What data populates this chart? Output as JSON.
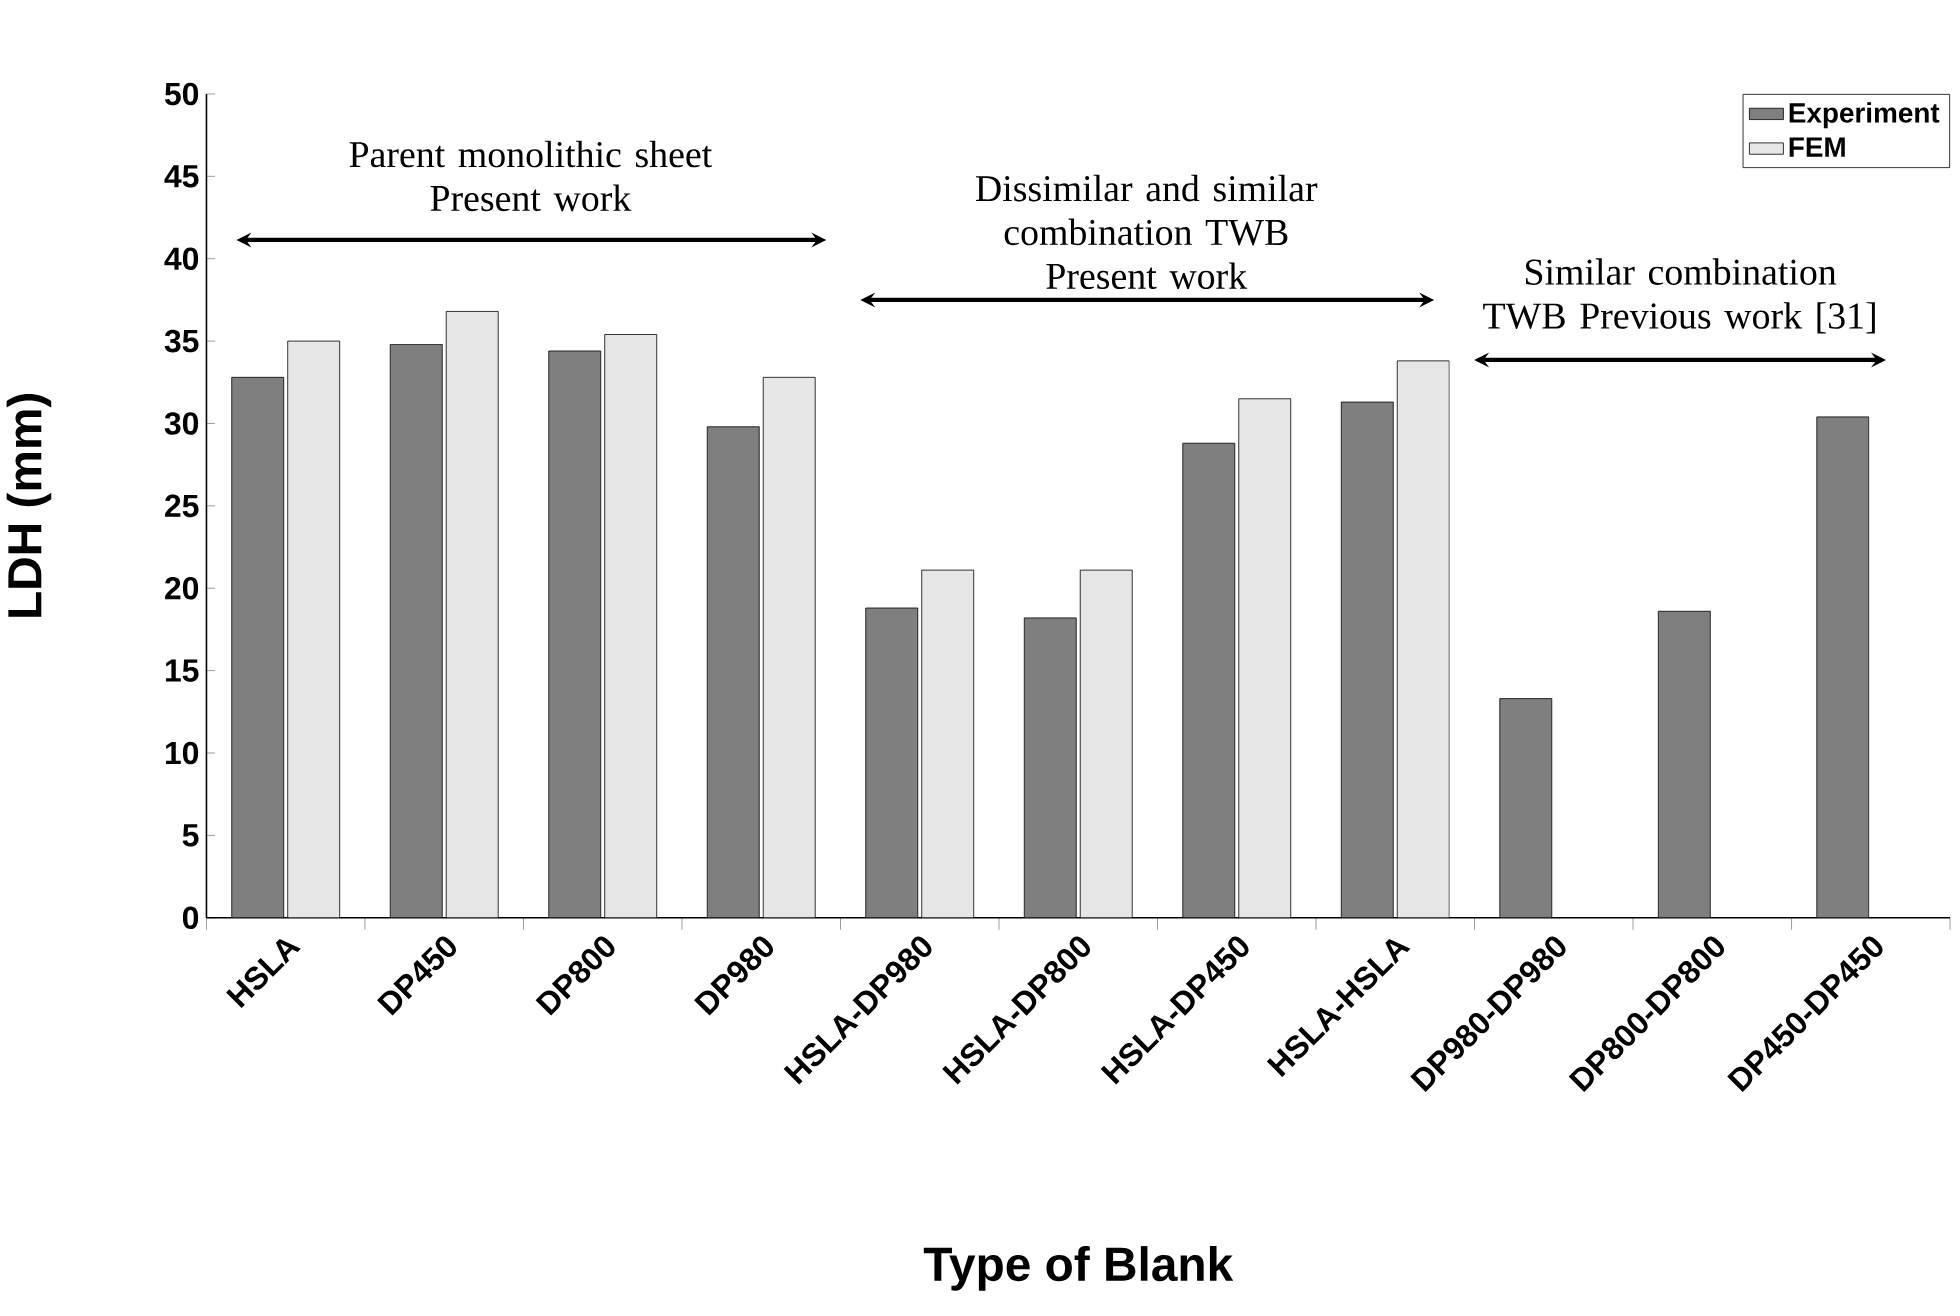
{
  "chart_data": {
    "type": "bar",
    "xlabel": "Type of Blank",
    "ylabel": "LDH (mm)",
    "categories": [
      "HSLA",
      "DP450",
      "DP800",
      "DP980",
      "HSLA-DP980",
      "HSLA-DP800",
      "HSLA-DP450",
      "HSLA-HSLA",
      "DP980-DP980",
      "DP800-DP800",
      "DP450-DP450"
    ],
    "series": [
      {
        "name": "Experiment",
        "color": "#7f7f7f",
        "values": [
          32.8,
          34.8,
          34.4,
          29.8,
          18.8,
          18.2,
          28.8,
          31.3,
          13.3,
          18.6,
          30.4
        ]
      },
      {
        "name": "FEM",
        "color": "#e6e6e6",
        "values": [
          35.0,
          36.8,
          35.4,
          32.8,
          21.1,
          21.1,
          31.5,
          33.8,
          null,
          null,
          null
        ]
      }
    ],
    "ylim": [
      0,
      50
    ],
    "yticks": [
      0,
      5,
      10,
      15,
      20,
      25,
      30,
      35,
      40,
      45,
      50
    ],
    "legend": "top right",
    "annotations": [
      "Parent monolithic sheet\nPresent work",
      "Dissimilar and similar\ncombination TWB\nPresent work",
      "Similar combination\nTWB Previous work [31]"
    ]
  }
}
